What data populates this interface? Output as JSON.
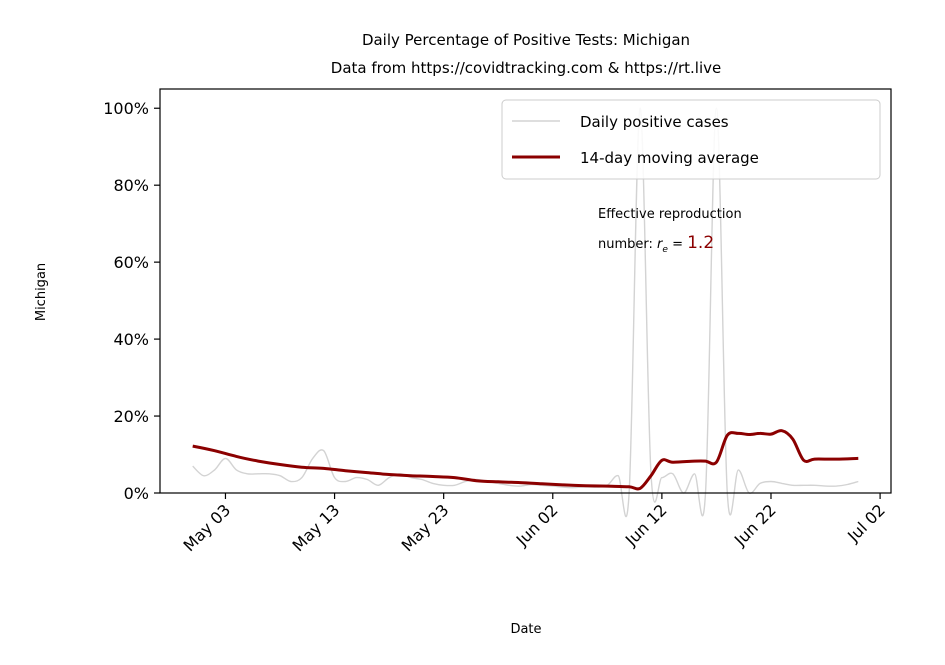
{
  "chart_data": {
    "type": "line",
    "title": "Daily Percentage of Positive Tests: Michigan",
    "subtitle": "Data from https://covidtracking.com & https://rt.live",
    "xlabel": "Date",
    "ylabel": "Michigan",
    "xlim": [
      "2020-04-27",
      "2020-07-03"
    ],
    "ylim": [
      0,
      1.05
    ],
    "yticks": [
      0,
      0.2,
      0.4,
      0.6,
      0.8,
      1.0
    ],
    "ytick_labels": [
      "0%",
      "20%",
      "40%",
      "60%",
      "80%",
      "100%"
    ],
    "xticks": [
      "2020-05-03",
      "2020-05-13",
      "2020-05-23",
      "2020-06-02",
      "2020-06-12",
      "2020-06-22",
      "2020-07-02"
    ],
    "xtick_labels": [
      "May 03",
      "May 13",
      "May 23",
      "Jun 02",
      "Jun 12",
      "Jun 22",
      "Jul 02"
    ],
    "grid": false,
    "legend_position": "top-right",
    "series": [
      {
        "name": "Daily positive cases",
        "color": "#d3d3d3",
        "style": "thin",
        "x": [
          "2020-04-30",
          "2020-05-01",
          "2020-05-02",
          "2020-05-03",
          "2020-05-04",
          "2020-05-05",
          "2020-05-06",
          "2020-05-07",
          "2020-05-08",
          "2020-05-09",
          "2020-05-10",
          "2020-05-11",
          "2020-05-12",
          "2020-05-13",
          "2020-05-14",
          "2020-05-15",
          "2020-05-16",
          "2020-05-17",
          "2020-05-18",
          "2020-05-19",
          "2020-05-20",
          "2020-05-21",
          "2020-05-22",
          "2020-05-23",
          "2020-05-24",
          "2020-05-25",
          "2020-05-26",
          "2020-05-27",
          "2020-05-28",
          "2020-05-29",
          "2020-05-30",
          "2020-05-31",
          "2020-06-01",
          "2020-06-02",
          "2020-06-03",
          "2020-06-04",
          "2020-06-05",
          "2020-06-06",
          "2020-06-07",
          "2020-06-08",
          "2020-06-09",
          "2020-06-10",
          "2020-06-11",
          "2020-06-12",
          "2020-06-13",
          "2020-06-14",
          "2020-06-15",
          "2020-06-16",
          "2020-06-17",
          "2020-06-18",
          "2020-06-19",
          "2020-06-20",
          "2020-06-21",
          "2020-06-22",
          "2020-06-23",
          "2020-06-24",
          "2020-06-25",
          "2020-06-26",
          "2020-06-27",
          "2020-06-28",
          "2020-06-29",
          "2020-06-30"
        ],
        "values": [
          0.07,
          0.045,
          0.06,
          0.09,
          0.06,
          0.05,
          0.05,
          0.05,
          0.045,
          0.03,
          0.04,
          0.09,
          0.11,
          0.04,
          0.03,
          0.04,
          0.035,
          0.02,
          0.04,
          0.05,
          0.04,
          0.035,
          0.025,
          0.02,
          0.02,
          0.03,
          0.035,
          0.03,
          0.025,
          0.02,
          0.018,
          0.022,
          0.02,
          0.018,
          0.015,
          0.014,
          0.016,
          0.015,
          0.02,
          0.045,
          0.0,
          1.0,
          0.05,
          0.04,
          0.05,
          0.0,
          0.05,
          0.0,
          1.0,
          0.0,
          0.06,
          0.0,
          0.025,
          0.03,
          0.025,
          0.02,
          0.02,
          0.02,
          0.018,
          0.018,
          0.022,
          0.03
        ]
      },
      {
        "name": "14-day moving average",
        "color": "#8b0000",
        "style": "thick",
        "x": [
          "2020-04-30",
          "2020-05-02",
          "2020-05-04",
          "2020-05-06",
          "2020-05-08",
          "2020-05-10",
          "2020-05-12",
          "2020-05-14",
          "2020-05-16",
          "2020-05-18",
          "2020-05-20",
          "2020-05-22",
          "2020-05-24",
          "2020-05-26",
          "2020-05-28",
          "2020-05-30",
          "2020-06-01",
          "2020-06-03",
          "2020-06-05",
          "2020-06-07",
          "2020-06-09",
          "2020-06-10",
          "2020-06-11",
          "2020-06-12",
          "2020-06-13",
          "2020-06-15",
          "2020-06-16",
          "2020-06-17",
          "2020-06-18",
          "2020-06-19",
          "2020-06-20",
          "2020-06-21",
          "2020-06-22",
          "2020-06-23",
          "2020-06-24",
          "2020-06-25",
          "2020-06-26",
          "2020-06-28",
          "2020-06-30"
        ],
        "values": [
          0.122,
          0.11,
          0.095,
          0.083,
          0.074,
          0.067,
          0.064,
          0.058,
          0.053,
          0.048,
          0.045,
          0.043,
          0.04,
          0.032,
          0.029,
          0.027,
          0.024,
          0.021,
          0.019,
          0.018,
          0.016,
          0.012,
          0.045,
          0.085,
          0.08,
          0.083,
          0.083,
          0.08,
          0.15,
          0.155,
          0.152,
          0.155,
          0.153,
          0.162,
          0.14,
          0.085,
          0.088,
          0.088,
          0.09
        ]
      }
    ],
    "annotation": {
      "line1": "Effective reproduction",
      "line2_prefix": "number: ",
      "symbol": "r",
      "symbol_sub": "e",
      "equals": " = ",
      "value": "1.2",
      "value_color": "#8b0000"
    }
  }
}
